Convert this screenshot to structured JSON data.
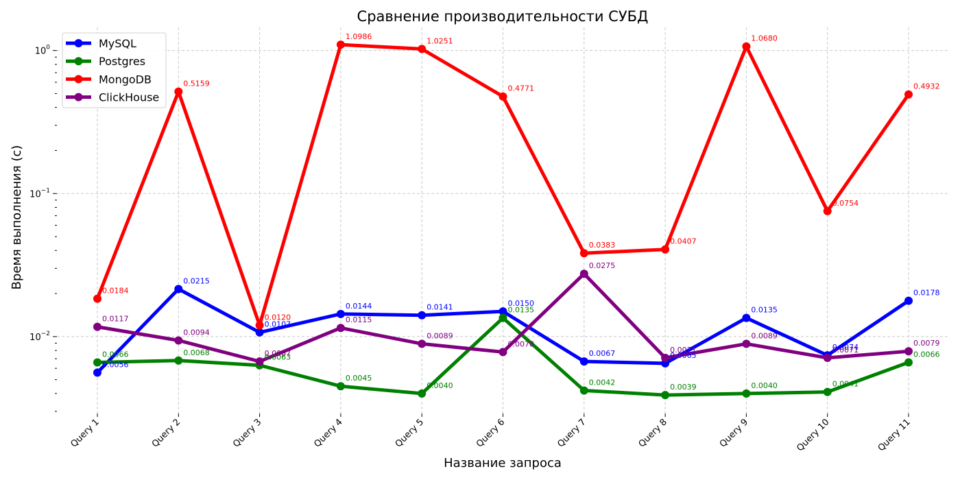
{
  "chart_data": {
    "type": "line",
    "title": "Сравнение производительности СУБД",
    "xlabel": "Название запроса",
    "ylabel": "Время выполнения (с)",
    "yscale": "log",
    "ylim": [
      0.0029,
      1.45
    ],
    "y_major_ticks": [
      {
        "value": 0.01,
        "base": "10",
        "exp": "−2"
      },
      {
        "value": 0.1,
        "base": "10",
        "exp": "−1"
      },
      {
        "value": 1,
        "base": "10",
        "exp": "0"
      }
    ],
    "grid": true,
    "legend_position": "top-left",
    "categories": [
      "Query 1",
      "Query 2",
      "Query 3",
      "Query 4",
      "Query 5",
      "Query 6",
      "Query 7",
      "Query 8",
      "Query 9",
      "Query 10",
      "Query 11"
    ],
    "series": [
      {
        "name": "MySQL",
        "color": "#0000ff",
        "values": [
          0.0056,
          0.0215,
          0.0107,
          0.0144,
          0.0141,
          0.015,
          0.0067,
          0.0065,
          0.0135,
          0.0074,
          0.0178
        ],
        "labels": [
          "0.0056",
          "0.0215",
          "0.0107",
          "0.0144",
          "0.0141",
          "0.0150",
          "0.0067",
          "0.0065",
          "0.0135",
          "0.0074",
          "0.0178"
        ]
      },
      {
        "name": "Postgres",
        "color": "#008000",
        "values": [
          0.0066,
          0.0068,
          0.0063,
          0.0045,
          0.004,
          0.0135,
          0.0042,
          0.0039,
          0.004,
          0.0041,
          0.0066
        ],
        "labels": [
          "0.0066",
          "0.0068",
          "0.0063",
          "0.0045",
          "0.0040",
          "0.0135",
          "0.0042",
          "0.0039",
          "0.0040",
          "0.0041",
          "0.0066"
        ]
      },
      {
        "name": "MongoDB",
        "color": "#ff0000",
        "values": [
          0.0184,
          0.5159,
          0.012,
          1.0986,
          1.0251,
          0.4771,
          0.0383,
          0.0407,
          1.068,
          0.0754,
          0.4932
        ],
        "labels": [
          "0.0184",
          "0.5159",
          "0.0120",
          "1.0986",
          "1.0251",
          "0.4771",
          "0.0383",
          "0.0407",
          "1.0680",
          "0.0754",
          "0.4932"
        ]
      },
      {
        "name": "ClickHouse",
        "color": "#800080",
        "values": [
          0.0117,
          0.0094,
          0.0067,
          0.0115,
          0.0089,
          0.0078,
          0.0275,
          0.0071,
          0.0089,
          0.0071,
          0.0079
        ],
        "labels": [
          "0.0117",
          "0.0094",
          "0.0067",
          "0.0115",
          "0.0089",
          "0.0078",
          "0.0275",
          "0.0071",
          "0.0089",
          "0.0071",
          "0.0079"
        ]
      }
    ]
  }
}
